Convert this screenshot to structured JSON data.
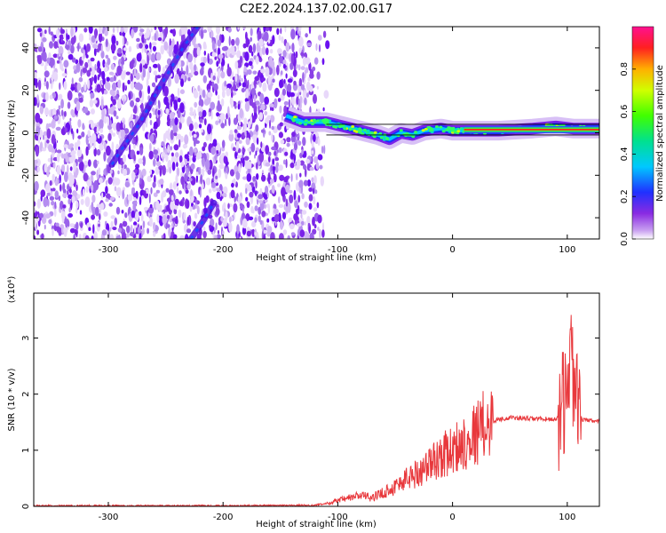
{
  "title": "C2E2.2024.137.02.00.G17",
  "chart_data": [
    {
      "type": "heatmap",
      "xlabel": "Height of straight line (km)",
      "ylabel": "Frequency (Hz)",
      "xlim": [
        -365,
        128
      ],
      "ylim": [
        -50,
        50
      ],
      "xticks": [
        -300,
        -200,
        -100,
        0,
        100
      ],
      "yticks": [
        -40,
        -20,
        0,
        20,
        40
      ],
      "colorbar": {
        "label": "Normalized spectral amplitude",
        "range": [
          0,
          1
        ],
        "ticks": [
          "0.0",
          "0.2",
          "0.4",
          "0.6",
          "0.8"
        ]
      },
      "noise_region_x": [
        -365,
        -115
      ],
      "traces": [
        {
          "x": [
            -297,
            -285,
            -272,
            -260,
            -247,
            -235,
            -222
          ],
          "y": [
            -15,
            -5,
            5,
            17,
            29,
            40,
            50
          ]
        },
        {
          "x": [
            -228,
            -218,
            -208
          ],
          "y": [
            -50,
            -42,
            -33
          ]
        }
      ],
      "carrier": {
        "x": [
          -145,
          -130,
          -110,
          -95,
          -80,
          -65,
          -55,
          -45,
          -35,
          -25,
          -10,
          0,
          20,
          40,
          70,
          90,
          105,
          128
        ],
        "y": [
          8,
          5,
          5,
          3,
          1,
          -1,
          -3,
          0,
          -1,
          1,
          2,
          1,
          1,
          1,
          2,
          3,
          2,
          2
        ]
      }
    },
    {
      "type": "line",
      "xlabel": "Height of straight line (km)",
      "ylabel": "SNR (10 * v/v)",
      "y_multiplier_label": "(x10⁴)",
      "xlim": [
        -365,
        128
      ],
      "ylim": [
        0,
        3.8
      ],
      "xticks": [
        -300,
        -200,
        -100,
        0,
        100
      ],
      "yticks": [
        0,
        1,
        2,
        3
      ],
      "series": [
        {
          "color": "#e8383c",
          "x": [
            -365,
            -300,
            -200,
            -120,
            -110,
            -100,
            -90,
            -80,
            -70,
            -60,
            -50,
            -40,
            -30,
            -20,
            -10,
            0,
            10,
            20,
            30,
            40,
            50,
            60,
            70,
            80,
            90,
            95,
            100,
            103,
            105,
            107,
            110,
            115,
            128
          ],
          "y": [
            0.01,
            0.01,
            0.01,
            0.02,
            0.05,
            0.1,
            0.15,
            0.2,
            0.15,
            0.25,
            0.35,
            0.5,
            0.6,
            0.75,
            0.9,
            1.0,
            1.15,
            1.3,
            1.5,
            1.55,
            1.58,
            1.57,
            1.56,
            1.56,
            1.55,
            1.7,
            2.1,
            2.8,
            2.4,
            1.9,
            1.6,
            1.53,
            1.52
          ]
        }
      ]
    }
  ]
}
